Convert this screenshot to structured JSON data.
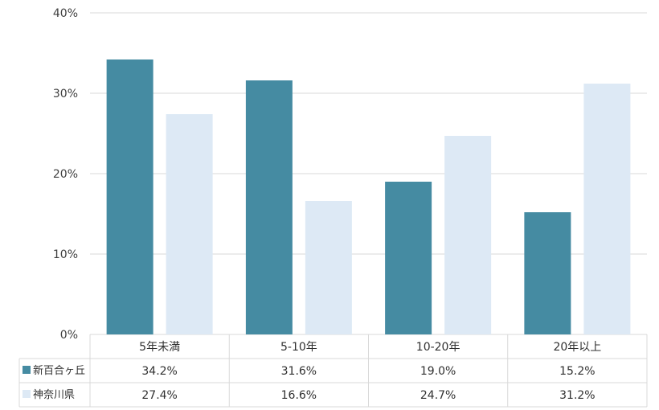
{
  "chart_data": {
    "type": "bar",
    "categories": [
      "5年未満",
      "5-10年",
      "10-20年",
      "20年以上"
    ],
    "series": [
      {
        "name": "新百合ヶ丘",
        "values": [
          34.2,
          31.6,
          19.0,
          15.2
        ],
        "labels": [
          "34.2%",
          "31.6%",
          "19.0%",
          "15.2%"
        ],
        "color": "#458ba2"
      },
      {
        "name": "神奈川県",
        "values": [
          27.4,
          16.6,
          24.7,
          31.2
        ],
        "labels": [
          "27.4%",
          "16.6%",
          "24.7%",
          "31.2%"
        ],
        "color": "#dde9f5"
      }
    ],
    "yticks": [
      "0%",
      "10%",
      "20%",
      "30%",
      "40%"
    ],
    "ylim": [
      0,
      40
    ],
    "grid": true,
    "legend": "data-table"
  }
}
